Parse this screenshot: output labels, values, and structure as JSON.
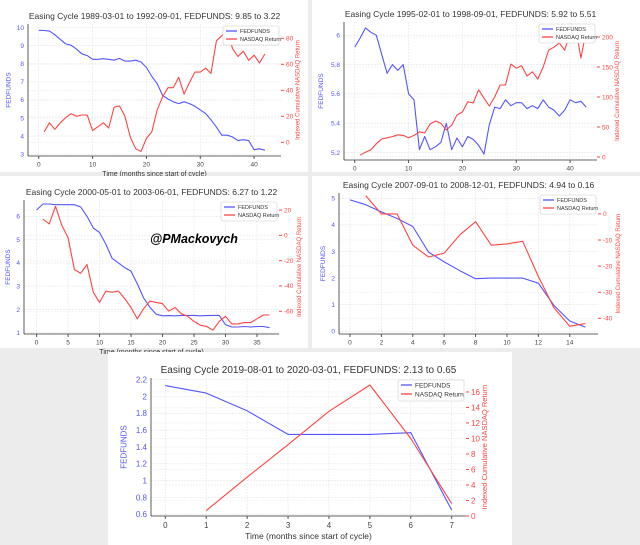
{
  "watermark": "@PMackovych",
  "colors": {
    "fed": "#5555ff",
    "nasdaq": "#ff4444",
    "left_axis": "#5555ff",
    "right_axis": "#ff4444"
  },
  "chart_data": [
    {
      "type": "line",
      "title": "Easing Cycle 1989-03-01 to 1992-09-01, FEDFUNDS: 9.85 to 3.22",
      "xlabel": "Time (months since start of cycle)",
      "ylabel": "FEDFUNDS",
      "ylabel_right": "Indexed Cumulative NASDAQ Return",
      "legend": [
        "FEDFUNDS",
        "NASDAQ Return"
      ],
      "legend_position": "top-right",
      "grid": true,
      "xlim": [
        -2,
        45
      ],
      "ylim": [
        2.9,
        10.2
      ],
      "ylim_right": [
        -10.5,
        91
      ],
      "x_ticks": [
        0,
        10,
        20,
        30,
        40
      ],
      "y_ticks": [
        3,
        4,
        5,
        6,
        7,
        8,
        9,
        10
      ],
      "y_ticks_right": [
        0,
        20,
        40,
        60,
        80
      ],
      "series": [
        {
          "name": "FEDFUNDS",
          "axis": "left",
          "x_start": 0,
          "values": [
            9.85,
            9.84,
            9.81,
            9.6,
            9.35,
            9.1,
            9.03,
            8.81,
            8.55,
            8.45,
            8.25,
            8.25,
            8.28,
            8.25,
            8.2,
            8.3,
            8.15,
            8.15,
            8.2,
            8.1,
            7.8,
            7.3,
            6.9,
            6.25,
            6.05,
            5.9,
            5.8,
            5.9,
            5.8,
            5.65,
            5.45,
            5.25,
            4.9,
            4.5,
            4.05,
            4.05,
            3.95,
            3.75,
            3.8,
            3.75,
            3.25,
            3.3,
            3.22
          ]
        },
        {
          "name": "NASDAQ Return",
          "axis": "right",
          "x_start": 1,
          "values": [
            8,
            15,
            10,
            15,
            19,
            22,
            20,
            21,
            21,
            9,
            12,
            15,
            11,
            27,
            28,
            20,
            4,
            -5,
            -7,
            3,
            8,
            25,
            35,
            42,
            42,
            50,
            37,
            46,
            54,
            54,
            57,
            53,
            78,
            82,
            86,
            72,
            66,
            70,
            63,
            67,
            61,
            68
          ]
        }
      ]
    },
    {
      "type": "line",
      "title": "Easing Cycle 1995-02-01 to 1998-09-01, FEDFUNDS: 5.92 to 5.51",
      "xlabel": "",
      "ylabel": "FEDFUNDS",
      "ylabel_right": "Indexed Cumulative NASDAQ Return",
      "legend": [
        "FEDFUNDS",
        "NASDAQ Return"
      ],
      "legend_position": "top-right",
      "grid": true,
      "xlim": [
        -2,
        45
      ],
      "ylim": [
        5.15,
        6.09
      ],
      "ylim_right": [
        -5,
        225
      ],
      "x_ticks": [
        0,
        10,
        20,
        30,
        40
      ],
      "y_ticks": [
        5.2,
        5.4,
        5.6,
        5.8,
        6.0
      ],
      "y_ticks_right": [
        0,
        50,
        100,
        150,
        200
      ],
      "series": [
        {
          "name": "FEDFUNDS",
          "axis": "left",
          "x_start": 0,
          "values": [
            5.92,
            5.98,
            6.05,
            6.02,
            6.0,
            5.87,
            5.74,
            5.8,
            5.76,
            5.8,
            5.6,
            5.56,
            5.22,
            5.31,
            5.22,
            5.24,
            5.27,
            5.4,
            5.22,
            5.3,
            5.24,
            5.31,
            5.29,
            5.25,
            5.19,
            5.39,
            5.51,
            5.5,
            5.56,
            5.52,
            5.54,
            5.54,
            5.5,
            5.52,
            5.5,
            5.56,
            5.51,
            5.49,
            5.45,
            5.49,
            5.56,
            5.54,
            5.55,
            5.51
          ]
        },
        {
          "name": "NASDAQ Return",
          "axis": "right",
          "x_start": 1,
          "values": [
            3,
            8,
            12,
            22,
            30,
            32,
            34,
            37,
            36,
            32,
            36,
            42,
            40,
            55,
            60,
            56,
            45,
            53,
            70,
            75,
            92,
            90,
            112,
            98,
            85,
            100,
            120,
            120,
            155,
            148,
            152,
            135,
            142,
            130,
            150,
            178,
            183,
            190,
            178,
            208,
            218,
            165,
            210
          ]
        }
      ]
    },
    {
      "type": "line",
      "title": "Easing Cycle 2000-05-01 to 2003-06-01, FEDFUNDS: 6.27 to 1.22",
      "xlabel": "Time (months since start of cycle)",
      "ylabel": "FEDFUNDS",
      "ylabel_right": "Indexed Cumulative NASDAQ Return",
      "legend": [
        "FEDFUNDS",
        "NASDAQ Return"
      ],
      "legend_position": "top-right",
      "grid": true,
      "xlim": [
        -2,
        38.5
      ],
      "ylim": [
        0.95,
        6.7
      ],
      "ylim_right": [
        -78,
        28
      ],
      "x_ticks": [
        0,
        5,
        10,
        15,
        20,
        25,
        30,
        35
      ],
      "y_ticks": [
        1,
        2,
        3,
        4,
        5,
        6
      ],
      "y_ticks_right": [
        -60,
        -40,
        -20,
        0,
        20
      ],
      "series": [
        {
          "name": "FEDFUNDS",
          "axis": "left",
          "x_start": 0,
          "values": [
            6.27,
            6.53,
            6.53,
            6.5,
            6.5,
            6.5,
            6.5,
            6.4,
            6.0,
            5.5,
            5.3,
            4.8,
            4.2,
            4.0,
            3.8,
            3.65,
            3.1,
            2.5,
            2.1,
            1.8,
            1.73,
            1.74,
            1.73,
            1.75,
            1.75,
            1.75,
            1.73,
            1.74,
            1.75,
            1.75,
            1.35,
            1.25,
            1.25,
            1.27,
            1.25,
            1.27,
            1.27,
            1.22
          ]
        },
        {
          "name": "NASDAQ Return",
          "axis": "right",
          "x_start": 1,
          "values": [
            13,
            9,
            23,
            8,
            -2,
            -27,
            -30,
            -23,
            -45,
            -53,
            -44,
            -45,
            -44,
            -50,
            -57,
            -66,
            -58,
            -52,
            -53,
            -54,
            -60,
            -57,
            -62,
            -64,
            -68,
            -71,
            -72,
            -75,
            -68,
            -64,
            -70,
            -70,
            -69,
            -69,
            -66,
            -63,
            -63
          ]
        }
      ]
    },
    {
      "type": "line",
      "title": "Easing Cycle 2007-09-01 to 2008-12-01, FEDFUNDS: 4.94 to 0.16",
      "xlabel": "",
      "ylabel": "FEDFUNDS",
      "ylabel_right": "Indexed Cumulative NASDAQ Return",
      "legend": [
        "FEDFUNDS",
        "NASDAQ Return"
      ],
      "legend_position": "top-right",
      "grid": true,
      "xlim": [
        -0.7,
        15.8
      ],
      "ylim": [
        -0.1,
        5.2
      ],
      "ylim_right": [
        -46,
        8
      ],
      "x_ticks": [
        0,
        2,
        4,
        6,
        8,
        10,
        12,
        14
      ],
      "y_ticks": [
        0,
        1,
        2,
        3,
        4,
        5
      ],
      "y_ticks_right": [
        -40,
        -30,
        -20,
        -10,
        0
      ],
      "series": [
        {
          "name": "FEDFUNDS",
          "axis": "left",
          "x_start": 0,
          "values": [
            4.94,
            4.76,
            4.49,
            4.24,
            3.94,
            2.98,
            2.61,
            2.28,
            1.98,
            2.0,
            2.0,
            2.0,
            1.81,
            0.97,
            0.39,
            0.16
          ]
        },
        {
          "name": "NASDAQ Return",
          "axis": "right",
          "x_start": 1,
          "values": [
            7,
            0,
            0,
            -12,
            -16.5,
            -15,
            -8,
            -3,
            -12,
            -11.5,
            -10.5,
            -24,
            -36,
            -43,
            -42
          ]
        }
      ]
    },
    {
      "type": "line",
      "title": "Easing Cycle 2019-08-01 to 2020-03-01, FEDFUNDS: 2.13 to 0.65",
      "xlabel": "Time (months since start of cycle)",
      "ylabel": "FEDFUNDS",
      "ylabel_right": "Indexed Cumulative NASDAQ Return",
      "legend": [
        "FEDFUNDS",
        "NASDAQ Return"
      ],
      "legend_position": "top-right",
      "grid": true,
      "xlim": [
        -0.35,
        7.35
      ],
      "ylim": [
        0.58,
        2.22
      ],
      "ylim_right": [
        0,
        17.8
      ],
      "x_ticks": [
        0,
        1,
        2,
        3,
        4,
        5,
        6,
        7
      ],
      "y_ticks": [
        0.6,
        0.8,
        1.0,
        1.2,
        1.4,
        1.6,
        1.8,
        2.0,
        2.2
      ],
      "y_ticks_right": [
        0,
        2,
        4,
        6,
        8,
        10,
        12,
        14,
        16
      ],
      "series": [
        {
          "name": "FEDFUNDS",
          "axis": "left",
          "x_start": 0,
          "values": [
            2.13,
            2.04,
            1.83,
            1.55,
            1.55,
            1.55,
            1.57,
            0.65
          ]
        },
        {
          "name": "NASDAQ Return",
          "axis": "right",
          "x_start": 1,
          "values": [
            0.7,
            5.0,
            9.2,
            13.5,
            16.9,
            10.0,
            1.6
          ]
        }
      ]
    }
  ]
}
